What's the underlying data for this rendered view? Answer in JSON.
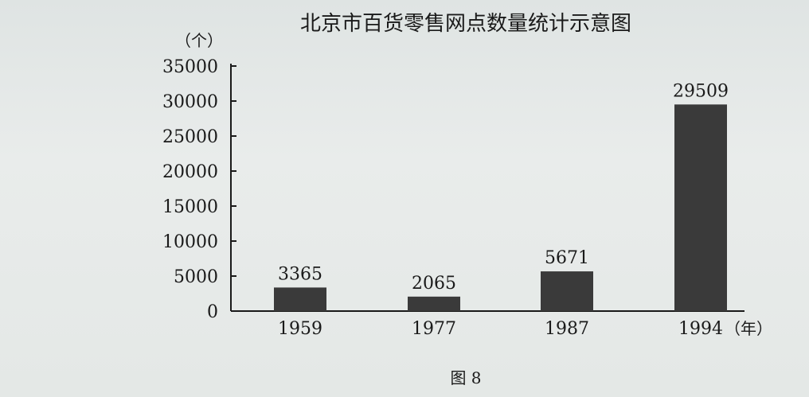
{
  "chart_data": {
    "type": "bar",
    "title": "北京市百货零售网点数量统计示意图",
    "ylabel": "（个）",
    "xlabel": "（年）",
    "categories": [
      "1959",
      "1977",
      "1987",
      "1994"
    ],
    "values": [
      3365,
      2065,
      5671,
      29509
    ],
    "ylim": [
      0,
      35000
    ],
    "yticks": [
      "0",
      "5000",
      "10000",
      "15000",
      "20000",
      "25000",
      "30000",
      "35000"
    ],
    "grid": false,
    "bar_color": "#3a3a3a"
  },
  "caption": "图 8"
}
